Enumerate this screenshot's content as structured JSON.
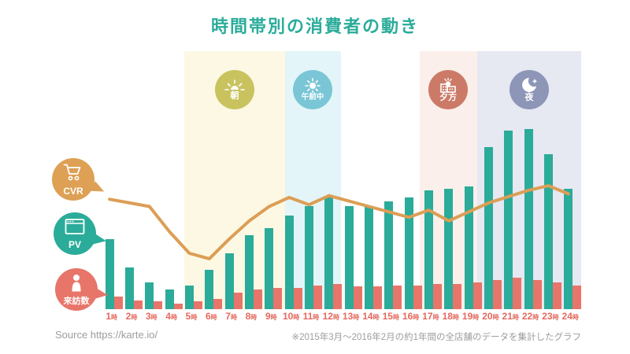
{
  "title": "時間帯別の消費者の動き",
  "legend": {
    "cvr": {
      "label": "CVR",
      "color": "#DDA054"
    },
    "pv": {
      "label": "PV",
      "color": "#2BAC9A"
    },
    "visitors": {
      "label": "来訪数",
      "color": "#E8756A"
    }
  },
  "zones": [
    {
      "label": "朝",
      "icon": "sunrise-icon",
      "badge_color": "#C9C35F",
      "bg_color": "#FCF8E4",
      "hours": "5時-9時"
    },
    {
      "label": "午前中",
      "icon": "sun-icon",
      "badge_color": "#7AC6D6",
      "bg_color": "#E3F5F8",
      "hours": "10時-12時"
    },
    {
      "label": "夕方",
      "icon": "sunset-town-icon",
      "badge_color": "#CC7A68",
      "bg_color": "#FAEFEA",
      "hours": "17時-19時"
    },
    {
      "label": "夜",
      "icon": "moon-star-icon",
      "badge_color": "#8D96B7",
      "bg_color": "#E6E8F2",
      "hours": "20時-24時"
    }
  ],
  "footer": {
    "source": "Source https://karte.io/",
    "note": "※2015年3月～2016年2月の約1年間の全店舗のデータを集計したグラフ"
  },
  "chart_data": {
    "type": "bar",
    "title": "時間帯別の消費者の動き",
    "categories": [
      "1時",
      "2時",
      "3時",
      "4時",
      "5時",
      "6時",
      "7時",
      "8時",
      "9時",
      "10時",
      "11時",
      "12時",
      "13時",
      "14時",
      "15時",
      "16時",
      "17時",
      "18時",
      "19時",
      "20時",
      "21時",
      "22時",
      "23時",
      "24時"
    ],
    "category_suffix": "時",
    "series": [
      {
        "name": "PV",
        "type": "bar",
        "color": "#2BAB99",
        "values": [
          39,
          23,
          15,
          11,
          13,
          22,
          31,
          41,
          45,
          52,
          57,
          62,
          57,
          57,
          60,
          62,
          66,
          67,
          68,
          90,
          99,
          100,
          86,
          67
        ]
      },
      {
        "name": "来訪数",
        "type": "bar",
        "color": "#E8756A",
        "values": [
          7,
          5,
          4.5,
          3,
          4.5,
          5.5,
          9,
          11,
          12,
          12,
          13,
          14,
          12.5,
          12.5,
          13,
          13,
          14,
          14,
          15,
          16,
          17.5,
          16,
          15,
          13
        ]
      },
      {
        "name": "CVR",
        "type": "line",
        "color": "#DC9E55",
        "values": [
          61,
          59,
          57,
          43,
          31,
          28,
          39,
          49,
          57,
          62,
          58,
          63,
          60,
          57,
          54,
          51,
          55,
          49,
          54,
          59,
          62.5,
          66,
          68.5,
          64
        ]
      }
    ],
    "ylim": [
      0,
      105
    ],
    "y_axis_visible": false,
    "grid": false,
    "legend_position": "left",
    "x_tick_color": "#E5695E",
    "background_bands": [
      {
        "label": "朝",
        "from": "5時",
        "to": "9時"
      },
      {
        "label": "午前中",
        "from": "10時",
        "to": "12時"
      },
      {
        "label": "夕方",
        "from": "17時",
        "to": "19時"
      },
      {
        "label": "夜",
        "from": "20時",
        "to": "24時"
      }
    ]
  }
}
